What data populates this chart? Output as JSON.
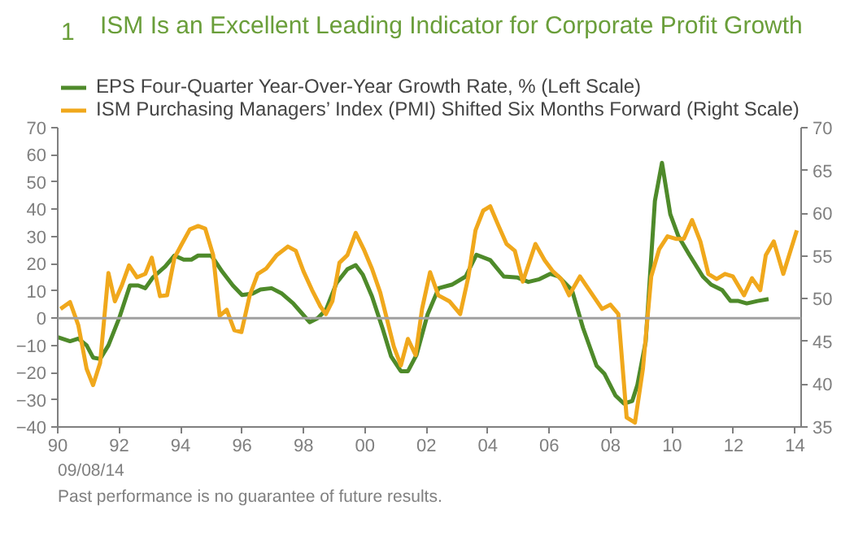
{
  "chart_data": {
    "type": "line",
    "title": "ISM Is an Excellent Leading Indicator for Corporate Profit Growth",
    "annotations": [
      "1",
      "09/08/14",
      "Past performance is no guarantee of future results."
    ],
    "xlim": [
      1990,
      2014.2
    ],
    "xticks": [
      {
        "value": 1990,
        "label": "90"
      },
      {
        "value": 1992,
        "label": "92"
      },
      {
        "value": 1994,
        "label": "94"
      },
      {
        "value": 1996,
        "label": "96"
      },
      {
        "value": 1998,
        "label": "98"
      },
      {
        "value": 2000,
        "label": "00"
      },
      {
        "value": 2002,
        "label": "02"
      },
      {
        "value": 2004,
        "label": "04"
      },
      {
        "value": 2006,
        "label": "06"
      },
      {
        "value": 2008,
        "label": "08"
      },
      {
        "value": 2010,
        "label": "10"
      },
      {
        "value": 2012,
        "label": "12"
      },
      {
        "value": 2014,
        "label": "14"
      }
    ],
    "ylim": [
      -40,
      70
    ],
    "yticks": [
      -40,
      -30,
      -20,
      -10,
      0,
      10,
      20,
      30,
      40,
      50,
      60,
      70
    ],
    "y2lim": [
      35,
      70
    ],
    "y2ticks": [
      35,
      40,
      45,
      50,
      55,
      60,
      65,
      70
    ],
    "grid": false,
    "legend": "top",
    "marker": "none",
    "line_style": "solid",
    "ref_lines": [
      {
        "axis": "y",
        "value": 0,
        "color": "#a0a0a0"
      }
    ],
    "series": [
      {
        "name": "EPS Four-Quarter Year-Over-Year Growth Rate, % (Left Scale)",
        "color": "#4e8a2a",
        "axis": "y",
        "x": [
          1990.0,
          1990.4,
          1990.67,
          1990.94,
          1991.15,
          1991.38,
          1991.65,
          1992.0,
          1992.35,
          1992.62,
          1992.85,
          1993.1,
          1993.5,
          1993.8,
          1994.1,
          1994.35,
          1994.57,
          1995.0,
          1995.36,
          1995.7,
          1996.0,
          1996.34,
          1996.6,
          1996.96,
          1997.3,
          1997.66,
          1997.93,
          1998.2,
          1998.46,
          1998.73,
          1999.08,
          1999.43,
          1999.7,
          1999.93,
          2000.23,
          2000.58,
          2000.85,
          2001.17,
          2001.4,
          2001.68,
          2002.04,
          2002.4,
          2002.83,
          2003.28,
          2003.63,
          2004.08,
          2004.52,
          2004.97,
          2005.32,
          2005.68,
          2006.03,
          2006.3,
          2006.74,
          2007.1,
          2007.54,
          2007.8,
          2008.16,
          2008.43,
          2008.7,
          2008.87,
          2009.14,
          2009.44,
          2009.67,
          2009.94,
          2010.2,
          2010.56,
          2011.0,
          2011.27,
          2011.63,
          2011.9,
          2012.16,
          2012.43,
          2012.78,
          2013.14
        ],
        "values": [
          -7,
          -8.5,
          -7.5,
          -10,
          -14.5,
          -15,
          -10,
          0,
          12,
          12,
          11,
          15,
          19,
          23,
          21.5,
          21.5,
          23,
          23,
          17,
          12,
          8.5,
          9,
          10.5,
          11,
          9,
          5.5,
          2,
          -1.5,
          0,
          3,
          13,
          18,
          19.5,
          16,
          8,
          -4,
          -14,
          -19.5,
          -19.5,
          -13.5,
          1.4,
          11,
          12.3,
          15.3,
          23.3,
          21.3,
          15.3,
          14.9,
          13.3,
          14.3,
          16.3,
          15.3,
          10.3,
          -3.6,
          -17.5,
          -20.5,
          -28.5,
          -31.4,
          -30.5,
          -24.5,
          -8.6,
          43.1,
          57.1,
          38.2,
          30.2,
          23.3,
          15.3,
          12.3,
          10.3,
          6.3,
          6.3,
          5.4,
          6.3,
          7.0
        ]
      },
      {
        "name": "ISM Purchasing Managers’ Index (PMI) Shifted Six Months Forward (Right Scale)",
        "color": "#f0a81c",
        "axis": "y2",
        "x": [
          1990.09,
          1990.4,
          1990.67,
          1990.94,
          1991.15,
          1991.38,
          1991.65,
          1991.86,
          1992.09,
          1992.32,
          1992.58,
          1992.85,
          1993.06,
          1993.33,
          1993.56,
          1993.8,
          1994.04,
          1994.3,
          1994.57,
          1994.8,
          1995.06,
          1995.27,
          1995.5,
          1995.75,
          1995.98,
          1996.25,
          1996.51,
          1996.78,
          1997.13,
          1997.49,
          1997.75,
          1998.0,
          1998.28,
          1998.55,
          1998.73,
          1998.94,
          1999.17,
          1999.43,
          1999.7,
          1999.96,
          2000.23,
          2000.5,
          2000.71,
          2000.94,
          2001.17,
          2001.4,
          2001.65,
          2001.86,
          2002.12,
          2002.39,
          2002.75,
          2003.1,
          2003.37,
          2003.6,
          2003.85,
          2004.08,
          2004.34,
          2004.61,
          2004.88,
          2005.14,
          2005.55,
          2005.85,
          2006.12,
          2006.39,
          2006.65,
          2007.0,
          2007.36,
          2007.72,
          2007.99,
          2008.25,
          2008.52,
          2008.79,
          2009.05,
          2009.32,
          2009.58,
          2009.85,
          2010.12,
          2010.38,
          2010.65,
          2010.92,
          2011.18,
          2011.45,
          2011.72,
          2011.98,
          2012.34,
          2012.6,
          2012.87,
          2013.05,
          2013.31,
          2013.62,
          2014.06
        ],
        "values": [
          48.8,
          49.6,
          46.9,
          41.8,
          39.9,
          42.5,
          53.0,
          49.7,
          51.6,
          53.9,
          52.5,
          52.9,
          54.8,
          50.3,
          50.4,
          54.8,
          56.4,
          58.1,
          58.5,
          58.2,
          55.1,
          48.0,
          48.7,
          46.3,
          46.1,
          50.4,
          52.9,
          53.5,
          55.1,
          56.1,
          55.6,
          53.2,
          51.0,
          49.1,
          48.2,
          49.7,
          54.2,
          55.1,
          57.7,
          55.8,
          53.5,
          50.7,
          47.7,
          44.4,
          42.2,
          45.3,
          43.4,
          48.8,
          53.1,
          50.4,
          49.7,
          48.2,
          52.6,
          58.0,
          60.3,
          60.8,
          58.6,
          56.4,
          55.6,
          52.0,
          56.4,
          54.5,
          53.2,
          52.3,
          50.4,
          52.6,
          50.7,
          48.8,
          49.3,
          48.2,
          36.1,
          35.5,
          41.8,
          52.6,
          55.8,
          57.3,
          57.0,
          57.0,
          59.2,
          56.7,
          52.9,
          52.3,
          52.9,
          52.6,
          50.4,
          52.4,
          51.0,
          55.1,
          56.7,
          52.9,
          58.0
        ]
      }
    ]
  }
}
